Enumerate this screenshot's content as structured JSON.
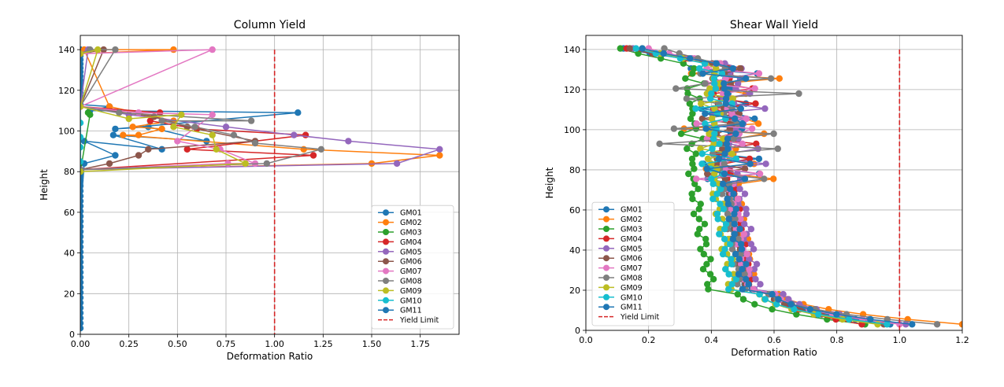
{
  "chart_data": [
    {
      "type": "line",
      "title": "Column Yield",
      "xlabel": "Deformation Ratio",
      "ylabel": "Height",
      "xlim": [
        0,
        1.95
      ],
      "ylim": [
        0,
        147
      ],
      "xticks": [
        "0.00",
        "0.25",
        "0.50",
        "0.75",
        "1.00",
        "1.25",
        "1.50",
        "1.75"
      ],
      "yticks": [
        "0",
        "20",
        "40",
        "60",
        "80",
        "100",
        "120",
        "140"
      ],
      "grid": true,
      "legend": "lower-right",
      "yield_limit": 1.0,
      "series_labels": [
        "GM01",
        "GM02",
        "GM03",
        "GM04",
        "GM05",
        "GM06",
        "GM07",
        "GM08",
        "GM09",
        "GM10",
        "GM11"
      ],
      "limit_label": "Yield Limit",
      "series": [
        {
          "name": "GM01",
          "color": "#1f77b4",
          "x": [
            0.0,
            0.0,
            0.0,
            0.0,
            0.0,
            0.0,
            0.0,
            0.0,
            0.0,
            0.0,
            0.0,
            0.0,
            0.0,
            0.0,
            0.0,
            0.0,
            0.0,
            0.0,
            0.0,
            0.0,
            0.0,
            0.0,
            0.0,
            0.02,
            0.18,
            0.02,
            0.42,
            0.17,
            0.65,
            0.35,
            0.18,
            1.12,
            0.05,
            0.15,
            0.0,
            0.0,
            0.0,
            0.0,
            0.0,
            0.0,
            0.0,
            0.0,
            0.0,
            0.0,
            0.0,
            0.0,
            0.0,
            0.0,
            0.0,
            0.0,
            0.0,
            0.0,
            0.0,
            0.0,
            0.0,
            0.0,
            0.0,
            0.0
          ],
          "y": [
            3.0,
            5.5,
            8.0,
            10.5,
            13.0,
            15.5,
            18.0,
            20.5,
            23.0,
            25.5,
            28.0,
            30.5,
            33.0,
            35.5,
            38.0,
            40.5,
            43.0,
            45.5,
            48.0,
            50.5,
            53.0,
            55.5,
            58.0,
            84,
            88,
            95,
            91,
            98,
            95,
            102,
            101,
            109,
            110,
            112,
            113,
            115,
            117,
            119,
            121,
            123,
            125,
            127,
            129,
            131,
            133,
            135,
            137,
            139,
            140,
            60.5,
            63.0,
            65.5,
            68.0,
            70.5,
            73.0,
            75.5,
            78.0,
            80.5
          ]
        },
        {
          "name": "GM02",
          "color": "#ff7f0e",
          "x": [
            0.0,
            1.5,
            1.85,
            1.15,
            0.22,
            0.3,
            0.42,
            0.27,
            0.48,
            0.15,
            0.02,
            0.48,
            0.0
          ],
          "y": [
            81,
            84,
            88,
            91,
            98,
            98,
            101,
            102,
            105,
            112,
            140,
            140,
            138
          ]
        },
        {
          "name": "GM03",
          "color": "#2ca02c",
          "x": [
            0.0,
            0.05,
            0.04
          ],
          "y": [
            80,
            108,
            109
          ]
        },
        {
          "name": "GM04",
          "color": "#d62728",
          "x": [
            0.0,
            1.2,
            0.55,
            1.16,
            0.6,
            0.36,
            0.41,
            0.0
          ],
          "y": [
            81,
            88,
            91,
            98,
            101,
            105,
            109,
            112
          ]
        },
        {
          "name": "GM05",
          "color": "#9467bd",
          "x": [
            0.0,
            1.63,
            1.85,
            1.38,
            1.1,
            0.75,
            0.25,
            0.0,
            0.04,
            0.0
          ],
          "y": [
            81,
            84,
            91,
            95,
            98,
            102,
            108,
            112,
            140,
            138
          ]
        },
        {
          "name": "GM06",
          "color": "#8c564b",
          "x": [
            0.0,
            0.15,
            0.3,
            0.35,
            0.9,
            0.55,
            0.38,
            0.0,
            0.12,
            0.0
          ],
          "y": [
            81,
            84,
            88,
            91,
            95,
            102,
            107,
            112,
            140,
            138
          ]
        },
        {
          "name": "GM07",
          "color": "#e377c2",
          "x": [
            0.0,
            0.76,
            0.9,
            0.72,
            0.5,
            0.68,
            0.3,
            0.0,
            0.68,
            0.0
          ],
          "y": [
            81,
            84,
            84,
            91,
            95,
            108,
            109,
            112,
            140,
            138
          ]
        },
        {
          "name": "GM08",
          "color": "#7f7f7f",
          "x": [
            0.0,
            0.96,
            1.24,
            0.9,
            0.79,
            0.59,
            0.42,
            0.88,
            0.2,
            0.0,
            0.18,
            0.05,
            0.0
          ],
          "y": [
            81,
            84,
            91,
            94,
            98,
            102,
            105,
            105,
            109,
            112,
            140,
            140,
            138
          ]
        },
        {
          "name": "GM09",
          "color": "#bcbd22",
          "x": [
            0.0,
            0.85,
            0.7,
            0.68,
            0.48,
            0.52,
            0.25,
            0.0,
            0.09,
            0.0
          ],
          "y": [
            80,
            84,
            91,
            98,
            102,
            108,
            106,
            112,
            140,
            138
          ]
        },
        {
          "name": "GM10",
          "color": "#17becf",
          "x": [
            0.0,
            0.0,
            0.0,
            0.0
          ],
          "y": [
            85,
            92,
            97,
            104
          ]
        },
        {
          "name": "GM11",
          "color": "#1f77b4",
          "x": [],
          "y": []
        }
      ]
    },
    {
      "type": "line",
      "title": "Shear Wall Yield",
      "xlabel": "Deformation Ratio",
      "ylabel": "Height",
      "xlim": [
        0,
        1.2
      ],
      "ylim": [
        0,
        147
      ],
      "xticks": [
        "0.0",
        "0.2",
        "0.4",
        "0.6",
        "0.8",
        "1.0",
        "1.2"
      ],
      "yticks": [
        "0",
        "20",
        "40",
        "60",
        "80",
        "100",
        "120",
        "140"
      ],
      "grid": true,
      "legend": "lower-left",
      "yield_limit": 1.0,
      "series_labels": [
        "GM01",
        "GM02",
        "GM03",
        "GM04",
        "GM05",
        "GM06",
        "GM07",
        "GM08",
        "GM09",
        "GM10",
        "GM11"
      ],
      "limit_label": "Yield Limit",
      "series": [
        {
          "name": "GM01",
          "color": "#1f77b4",
          "ref": 0.455,
          "amp": 0.13,
          "x0": 0.97,
          "xtop": 0.12
        },
        {
          "name": "GM02",
          "color": "#ff7f0e",
          "ref": 0.47,
          "amp": 0.16,
          "x0": 1.2,
          "xtop": 0.14
        },
        {
          "name": "GM03",
          "color": "#2ca02c",
          "ref": 0.34,
          "amp": 0.04,
          "x0": 0.89,
          "xtop": 0.11
        },
        {
          "name": "GM04",
          "color": "#d62728",
          "ref": 0.46,
          "amp": 0.1,
          "x0": 0.88,
          "xtop": 0.13
        },
        {
          "name": "GM05",
          "color": "#9467bd",
          "ref": 0.485,
          "amp": 0.1,
          "x0": 1.02,
          "xtop": 0.15
        },
        {
          "name": "GM06",
          "color": "#8c564b",
          "ref": 0.44,
          "amp": 0.07,
          "x0": 0.95,
          "xtop": 0.14
        },
        {
          "name": "GM07",
          "color": "#e377c2",
          "ref": 0.46,
          "amp": 0.12,
          "x0": 1.0,
          "xtop": 0.2
        },
        {
          "name": "GM08",
          "color": "#7f7f7f",
          "ref": 0.44,
          "amp": 0.26,
          "x0": 1.12,
          "xtop": 0.25
        },
        {
          "name": "GM09",
          "color": "#bcbd22",
          "ref": 0.41,
          "amp": 0.06,
          "x0": 0.93,
          "xtop": 0.18
        },
        {
          "name": "GM10",
          "color": "#17becf",
          "ref": 0.41,
          "amp": 0.07,
          "x0": 0.96,
          "xtop": 0.16
        },
        {
          "name": "GM11",
          "color": "#1f77b4",
          "ref": 0.45,
          "amp": 0.09,
          "x0": 1.04,
          "xtop": 0.18
        }
      ]
    }
  ]
}
